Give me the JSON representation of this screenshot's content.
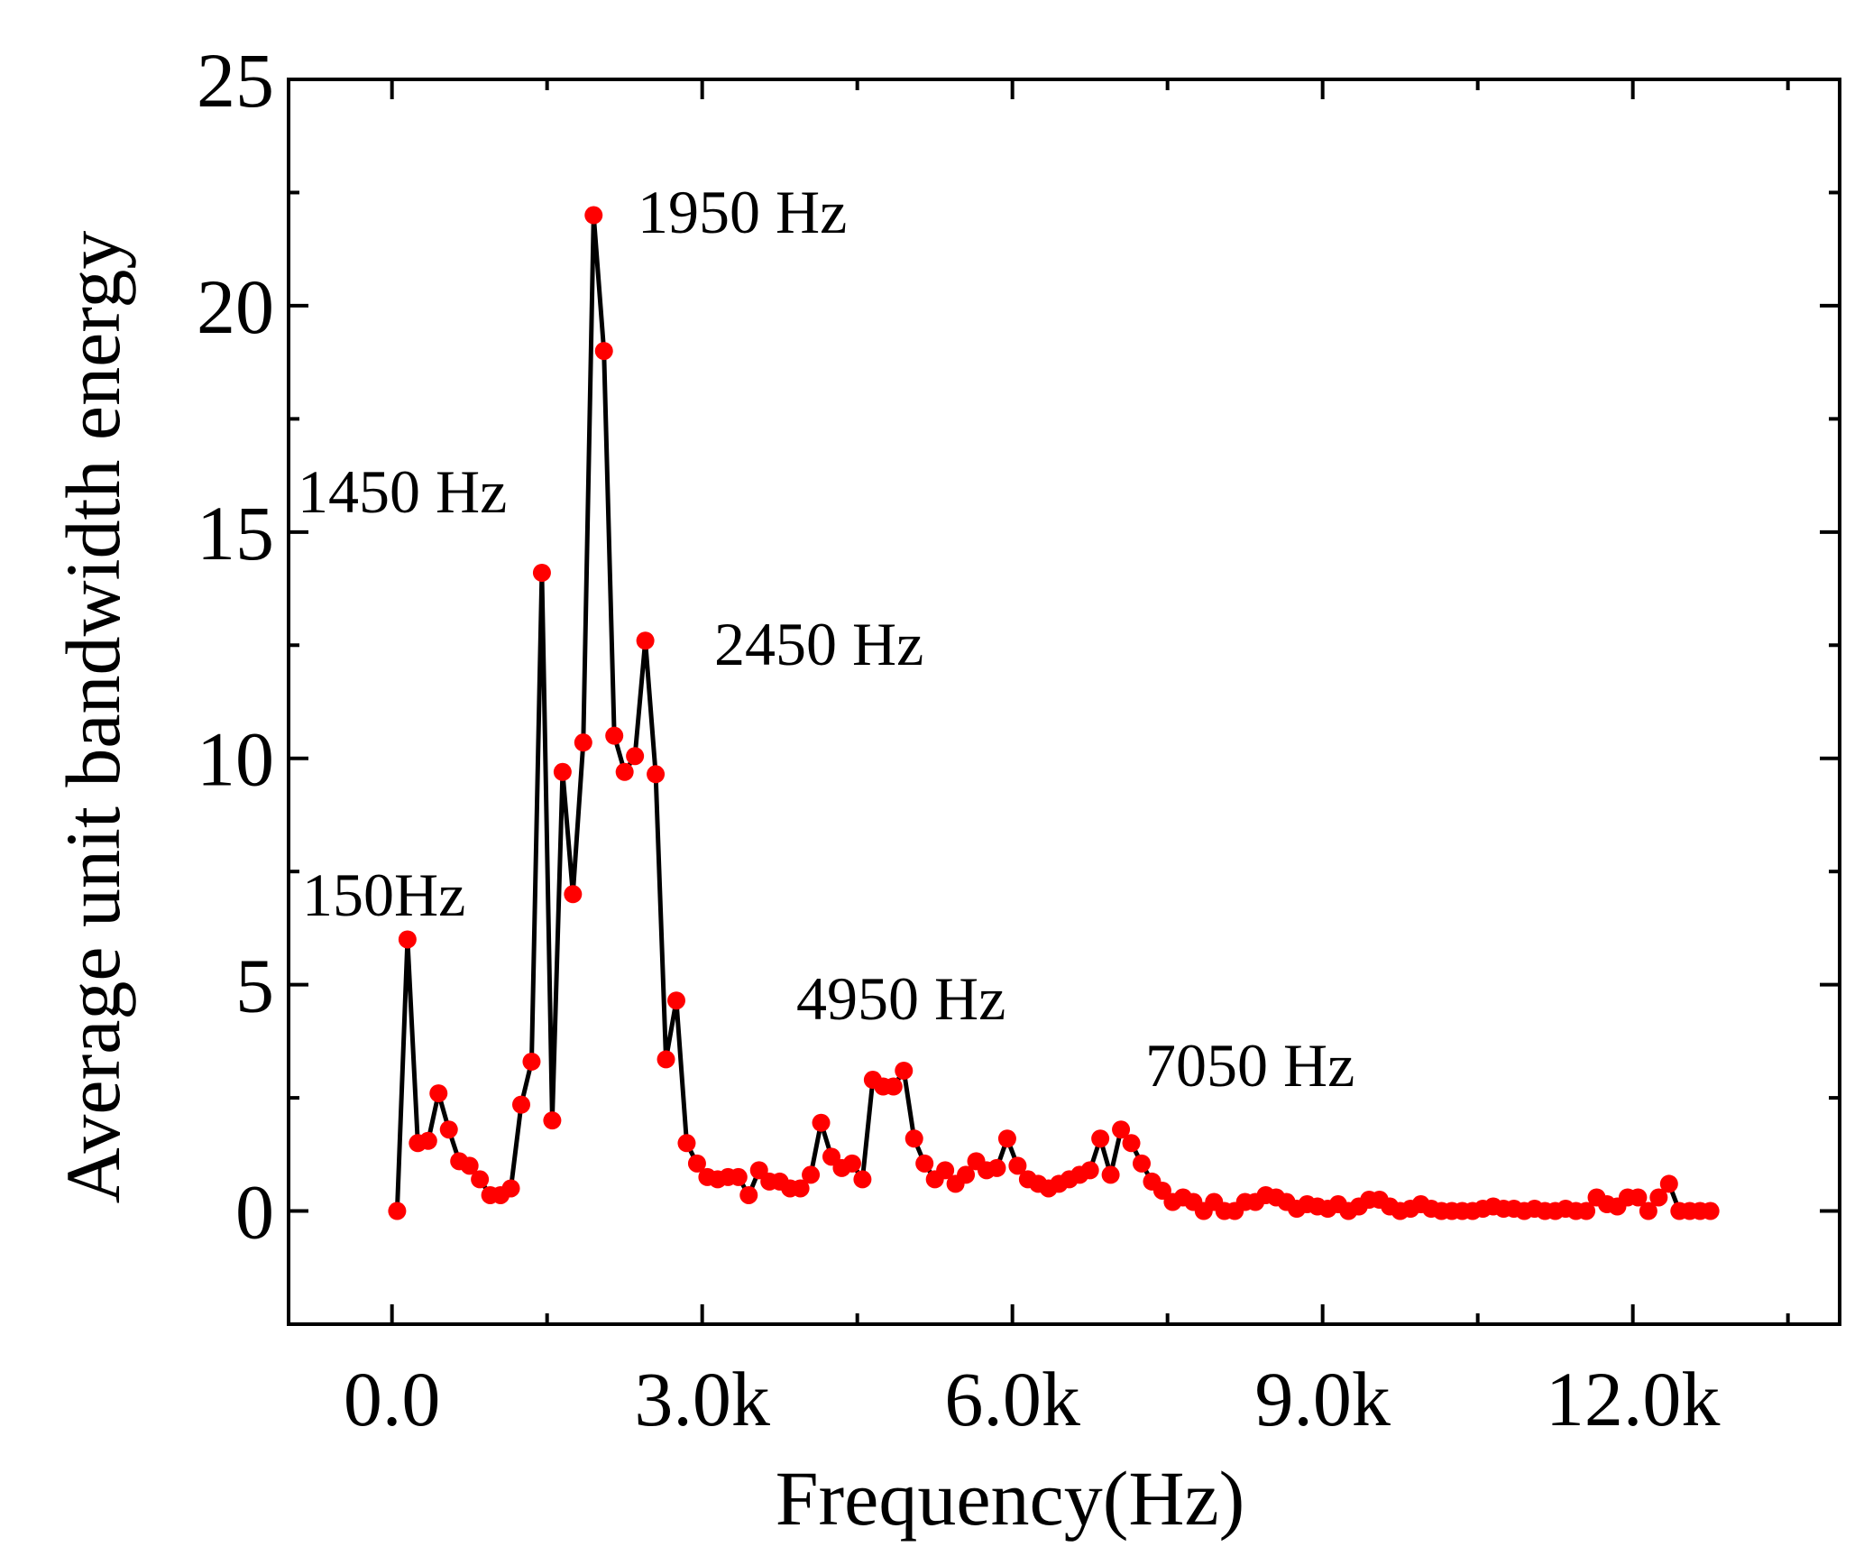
{
  "chart_data": {
    "type": "line",
    "title": "",
    "xlabel": "Frequency(Hz)",
    "ylabel": "Average unit bandwidth energy",
    "xlim": [
      -1000,
      14000
    ],
    "ylim": [
      -2.5,
      25
    ],
    "x_ticks": [
      0,
      3000,
      6000,
      9000,
      12000
    ],
    "x_tick_labels": [
      "0.0",
      "3.0k",
      "6.0k",
      "9.0k",
      "12.0k"
    ],
    "y_ticks": [
      0,
      5,
      10,
      15,
      20,
      25
    ],
    "y_tick_labels": [
      "0",
      "5",
      "10",
      "15",
      "20",
      "25"
    ],
    "grid": false,
    "line_color": "#000000",
    "marker_color": "#ff0000",
    "series": [
      {
        "name": "Average unit bandwidth energy",
        "x": [
          50,
          150,
          250,
          350,
          450,
          550,
          650,
          750,
          850,
          950,
          1050,
          1150,
          1250,
          1350,
          1450,
          1550,
          1650,
          1750,
          1850,
          1950,
          2050,
          2150,
          2250,
          2350,
          2450,
          2550,
          2650,
          2750,
          2850,
          2950,
          3050,
          3150,
          3250,
          3350,
          3450,
          3550,
          3650,
          3750,
          3850,
          3950,
          4050,
          4150,
          4250,
          4350,
          4450,
          4550,
          4650,
          4750,
          4850,
          4950,
          5050,
          5150,
          5250,
          5350,
          5450,
          5550,
          5650,
          5750,
          5850,
          5950,
          6050,
          6150,
          6250,
          6350,
          6450,
          6550,
          6650,
          6750,
          6850,
          6950,
          7050,
          7150,
          7250,
          7350,
          7450,
          7550,
          7650,
          7750,
          7850,
          7950,
          8050,
          8150,
          8250,
          8350,
          8450,
          8550,
          8650,
          8750,
          8850,
          8950,
          9050,
          9150,
          9250,
          9350,
          9450,
          9550,
          9650,
          9750,
          9850,
          9950,
          10050,
          10150,
          10250,
          10350,
          10450,
          10550,
          10650,
          10750,
          10850,
          10950,
          11050,
          11150,
          11250,
          11350,
          11450,
          11550,
          11650,
          11750,
          11850,
          11950,
          12050,
          12150,
          12250,
          12350,
          12450,
          12550,
          12650,
          12750
        ],
        "y": [
          0,
          6,
          1.5,
          1.55,
          2.6,
          1.8,
          1.1,
          1,
          0.7,
          0.35,
          0.35,
          0.5,
          2.35,
          3.3,
          14.1,
          2,
          9.7,
          7,
          10.35,
          22,
          19,
          10.5,
          9.7,
          10.05,
          12.6,
          9.65,
          3.35,
          4.65,
          1.5,
          1.05,
          0.75,
          0.7,
          0.75,
          0.75,
          0.35,
          0.9,
          0.65,
          0.65,
          0.5,
          0.5,
          0.8,
          1.95,
          1.2,
          0.95,
          1.05,
          0.7,
          2.9,
          2.75,
          2.75,
          3.1,
          1.6,
          1.05,
          0.7,
          0.9,
          0.6,
          0.8,
          1.1,
          0.9,
          0.95,
          1.6,
          1,
          0.7,
          0.6,
          0.5,
          0.6,
          0.7,
          0.8,
          0.9,
          1.6,
          0.8,
          1.8,
          1.5,
          1.05,
          0.65,
          0.45,
          0.2,
          0.3,
          0.2,
          0,
          0.2,
          0,
          0,
          0.2,
          0.2,
          0.35,
          0.3,
          0.2,
          0.05,
          0.15,
          0.1,
          0.05,
          0.15,
          0,
          0.1,
          0.25,
          0.25,
          0.1,
          0,
          0.05,
          0.15,
          0.05,
          0,
          0,
          0,
          0,
          0.05,
          0.1,
          0.05,
          0.05,
          0,
          0.05,
          0,
          0,
          0.05,
          0,
          0,
          0.3,
          0.15,
          0.1,
          0.3,
          0.3,
          0,
          0.3,
          0.6,
          0,
          0,
          0,
          0
        ]
      }
    ],
    "annotations": [
      {
        "text": "150Hz"
      },
      {
        "text": "1450 Hz"
      },
      {
        "text": "1950 Hz"
      },
      {
        "text": "2450 Hz"
      },
      {
        "text": "4950 Hz"
      },
      {
        "text": "7050 Hz"
      }
    ]
  }
}
